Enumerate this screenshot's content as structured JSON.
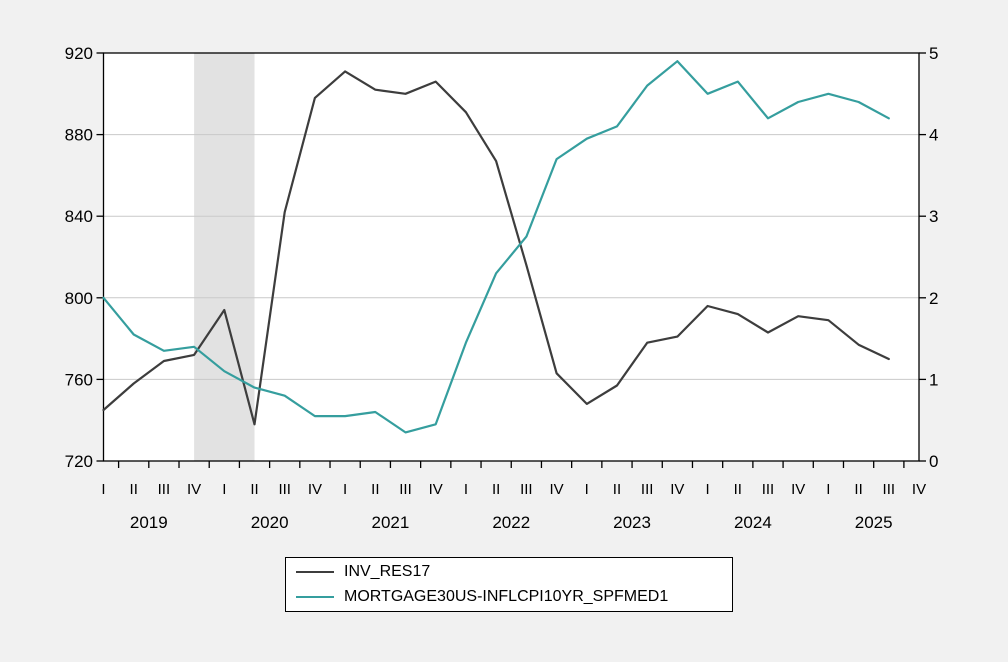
{
  "figure": {
    "background_color": "#f1f1f1",
    "plot_background_color": "#ffffff",
    "gridline_color": "#c9c9c9",
    "frame_color": "#000000"
  },
  "chart_data": {
    "type": "line",
    "title": "",
    "x_quarters": [
      "2019Q1",
      "2019Q2",
      "2019Q3",
      "2019Q4",
      "2020Q1",
      "2020Q2",
      "2020Q3",
      "2020Q4",
      "2021Q1",
      "2021Q2",
      "2021Q3",
      "2021Q4",
      "2022Q1",
      "2022Q2",
      "2022Q3",
      "2022Q4",
      "2023Q1",
      "2023Q2",
      "2023Q3",
      "2023Q4",
      "2024Q1",
      "2024Q2",
      "2024Q3",
      "2024Q4",
      "2025Q1",
      "2025Q2",
      "2025Q3",
      "2025Q4"
    ],
    "quarter_tick_labels": [
      "I",
      "II",
      "III",
      "IV"
    ],
    "year_labels": [
      "2019",
      "2020",
      "2021",
      "2022",
      "2023",
      "2024",
      "2025"
    ],
    "left_axis": {
      "min": 720,
      "max": 920,
      "tick_step": 40,
      "tick_labels": [
        "720",
        "760",
        "800",
        "840",
        "880",
        "920"
      ]
    },
    "right_axis": {
      "min": 0,
      "max": 5,
      "tick_step": 1,
      "tick_labels": [
        "0",
        "1",
        "2",
        "3",
        "4",
        "5"
      ]
    },
    "grid": "horizontal-only",
    "shaded_band": {
      "start_quarter": "2019Q4",
      "end_quarter": "2020Q2",
      "color": "#e2e2e2"
    },
    "series": [
      {
        "name": "INV_RES17",
        "axis": "left",
        "color": "#3d3d3d",
        "values": [
          745,
          758,
          769,
          772,
          794,
          738,
          842,
          898,
          911,
          902,
          900,
          906,
          891,
          867,
          816,
          763,
          748,
          757,
          778,
          781,
          796,
          792,
          783,
          791,
          789,
          777,
          770
        ]
      },
      {
        "name": "MORTGAGE30US-INFLCPI10YR_SPFMED1",
        "axis": "right",
        "color": "#359e9e",
        "values": [
          2.0,
          1.55,
          1.35,
          1.4,
          1.1,
          0.9,
          0.8,
          0.55,
          0.55,
          0.6,
          0.35,
          0.45,
          1.45,
          2.3,
          2.75,
          3.7,
          3.95,
          4.1,
          4.6,
          4.9,
          4.5,
          4.65,
          4.2,
          4.4,
          4.5,
          4.4,
          4.2
        ]
      }
    ],
    "legend": {
      "position": "bottom-center",
      "entries": [
        "INV_RES17",
        "MORTGAGE30US-INFLCPI10YR_SPFMED1"
      ]
    }
  }
}
